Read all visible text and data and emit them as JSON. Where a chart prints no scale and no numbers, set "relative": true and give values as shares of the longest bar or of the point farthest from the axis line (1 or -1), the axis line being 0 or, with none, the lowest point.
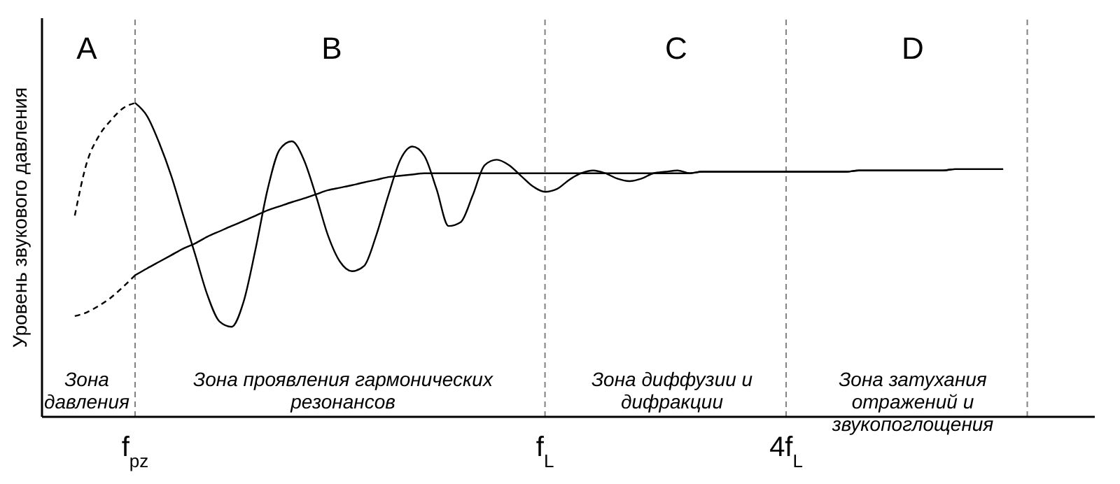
{
  "chart_data": {
    "type": "line",
    "relative": true,
    "ylabel": "Уровень звукового давления",
    "grid": "x",
    "marker": "none",
    "tick_labels": "x",
    "categories": [
      null,
      null,
      null,
      null,
      null,
      "f$_{pz}$",
      null,
      null,
      null,
      null,
      null,
      null,
      null,
      null,
      null,
      null,
      null,
      null,
      null,
      null,
      null,
      null,
      null,
      null,
      null,
      null,
      null,
      null,
      null,
      null,
      null,
      null,
      null,
      null,
      null,
      null,
      null,
      null,
      null,
      "f$_{L}$",
      null,
      null,
      null,
      null,
      null,
      null,
      null,
      null,
      null,
      null,
      null,
      null,
      null,
      null,
      null,
      null,
      null,
      null,
      null,
      "4f$_{L}$",
      null,
      null,
      null,
      null,
      null,
      null,
      null,
      null,
      null,
      null,
      null,
      null,
      null,
      null,
      null,
      null,
      null,
      null,
      null,
      null
    ],
    "series": [
      {
        "color": "#000000",
        "line_style": "dashed",
        "values": [
          0.641,
          0.81,
          0.895,
          0.945,
          0.983,
          1.0,
          null,
          null,
          null,
          null,
          null,
          null,
          null,
          null,
          null,
          null,
          null,
          null,
          null,
          null,
          null,
          null,
          null,
          null,
          null,
          null,
          null,
          null,
          null,
          null,
          null,
          null,
          null,
          null,
          null,
          null,
          null,
          null,
          null,
          null,
          null,
          null,
          null,
          null,
          null,
          null,
          null,
          null,
          null,
          null,
          null,
          null,
          null,
          null,
          null,
          null,
          null,
          null,
          null,
          null,
          null,
          null,
          null,
          null,
          null,
          null,
          null,
          null,
          null,
          null,
          null,
          null,
          null,
          null,
          null,
          null,
          null,
          null,
          null,
          null
        ]
      },
      {
        "color": "#000000",
        "line_style": "solid",
        "values": [
          null,
          null,
          null,
          null,
          null,
          1.0,
          0.958,
          0.873,
          0.768,
          0.641,
          0.515,
          0.388,
          0.304,
          0.287,
          0.367,
          0.536,
          0.726,
          0.852,
          0.878,
          0.819,
          0.705,
          0.578,
          0.494,
          0.464,
          0.481,
          0.578,
          0.705,
          0.819,
          0.861,
          0.831,
          0.726,
          0.608,
          0.62,
          0.705,
          0.802,
          0.819,
          0.802,
          0.768,
          0.734,
          0.717,
          0.726,
          0.755,
          0.776,
          0.785,
          0.776,
          0.759,
          0.751,
          0.759,
          0.776,
          0.781,
          0.785,
          0.776,
          0.781,
          0.781,
          0.781,
          0.781,
          0.781,
          0.781,
          0.781,
          0.781,
          0.781,
          0.781,
          0.781,
          0.781,
          0.781,
          0.785,
          0.785,
          0.785,
          0.785,
          0.785,
          0.785,
          0.785,
          0.785,
          0.789,
          0.789,
          0.789,
          0.789,
          0.789,
          null,
          null
        ]
      },
      {
        "color": "#000000",
        "line_style": "dashed",
        "values": [
          0.321,
          0.333,
          0.354,
          0.38,
          0.414,
          0.451,
          null,
          null,
          null,
          null,
          null,
          null,
          null,
          null,
          null,
          null,
          null,
          null,
          null,
          null,
          null,
          null,
          null,
          null,
          null,
          null,
          null,
          null,
          null,
          null,
          null,
          null,
          null,
          null,
          null,
          null,
          null,
          null,
          null,
          null,
          null,
          null,
          null,
          null,
          null,
          null,
          null,
          null,
          null,
          null,
          null,
          null,
          null,
          null,
          null,
          null,
          null,
          null,
          null,
          null,
          null,
          null,
          null,
          null,
          null,
          null,
          null,
          null,
          null,
          null,
          null,
          null,
          null,
          null,
          null,
          null,
          null,
          null,
          null,
          null
        ]
      },
      {
        "color": "#000000",
        "line_style": "solid",
        "values": [
          null,
          null,
          null,
          null,
          null,
          0.451,
          0.473,
          0.494,
          0.515,
          0.536,
          0.553,
          0.574,
          0.591,
          0.608,
          0.624,
          0.641,
          0.658,
          0.671,
          0.684,
          0.696,
          0.709,
          0.722,
          0.73,
          0.738,
          0.747,
          0.755,
          0.764,
          0.768,
          0.772,
          0.776,
          0.776,
          0.776,
          0.776,
          0.776,
          0.776,
          0.776,
          0.776,
          0.776,
          0.776,
          0.776,
          0.776,
          0.776,
          0.776,
          0.776,
          0.776,
          0.776,
          0.776,
          0.776,
          0.776,
          0.776,
          0.776,
          0.776,
          0.781,
          0.781,
          0.781,
          0.781,
          0.781,
          0.781,
          0.781,
          0.781,
          0.781,
          0.781,
          0.781,
          0.781,
          0.781,
          0.785,
          0.785,
          0.785,
          0.785,
          0.785,
          0.785,
          0.785,
          0.785,
          0.789,
          0.789,
          0.789,
          0.789,
          0.789,
          null,
          null
        ]
      }
    ],
    "ref_lines": [
      {
        "axis": "x",
        "color": "#808080",
        "line_style": "dashed"
      }
    ],
    "annotations": [
      "A",
      "B",
      "C",
      "D",
      "Зона давления",
      "Зона проявления гармонических резонансов",
      "Зона диффузии и дифракции",
      "Зона затухания отражений и звукопоглощения"
    ]
  }
}
